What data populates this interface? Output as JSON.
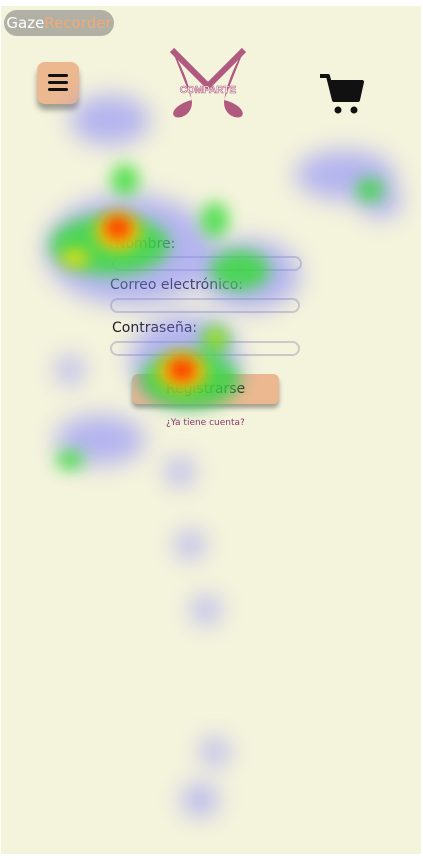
{
  "recorder_badge": {
    "part1": "Gaze",
    "part2": "Recorder"
  },
  "header": {
    "menu_icon": "hamburger-menu-icon",
    "logo_text": "COMPARTE",
    "cart_icon": "shopping-cart-icon"
  },
  "form": {
    "name_label": "Nombre:",
    "email_label": "Correo electrónico:",
    "password_label": "Contraseña:",
    "register_label": "Registrarse",
    "login_link": "¿Ya tiene cuenta?"
  },
  "colors": {
    "background": "#f4f3dc",
    "accent": "#ecb890",
    "logo": "#b15a80",
    "link": "#8a3a6a"
  }
}
